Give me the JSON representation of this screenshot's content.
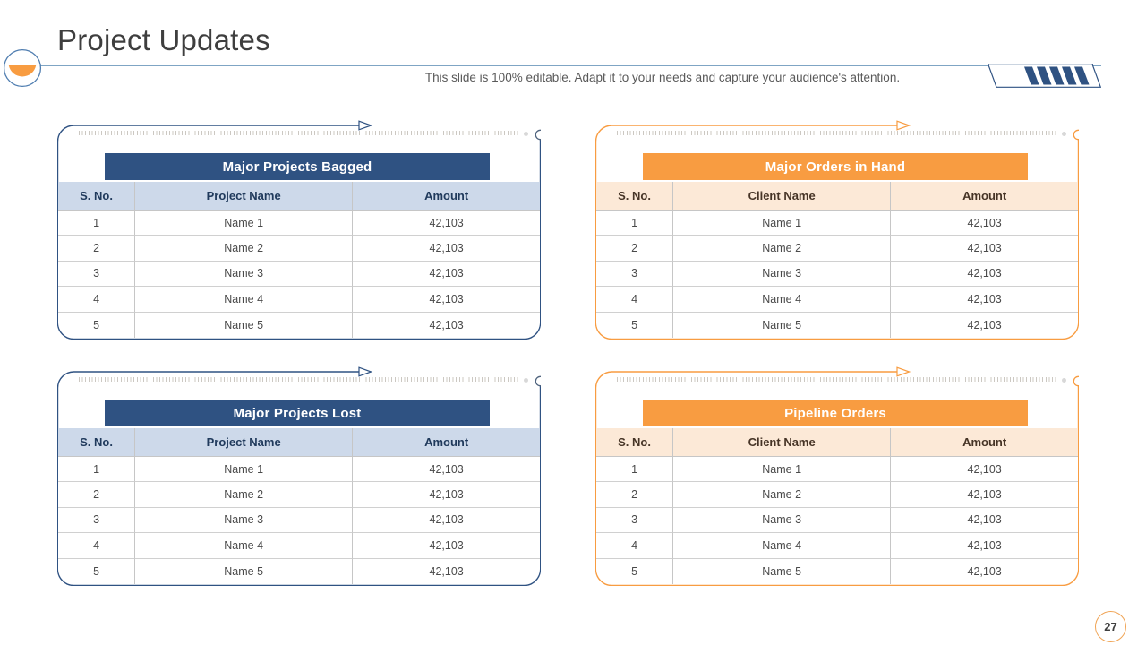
{
  "slide": {
    "title": "Project Updates",
    "subtitle": "This slide is 100% editable. Adapt it to your needs and capture your audience's attention.",
    "page_number": "27"
  },
  "colors": {
    "blue": "#2F5282",
    "blue_light": "#CDD9EA",
    "orange": "#F89C41",
    "orange_light": "#FCE9D7",
    "title_text": "#3E3E3E",
    "subtitle_text": "#595959",
    "cell_text": "#4A4A4A"
  },
  "icons": {
    "logo": "half-filled-circle-icon",
    "hatch": "striped-parallelogram-icon",
    "arrow": "right-arrow-icon",
    "node": "circle-node-icon"
  },
  "tables": [
    {
      "title": "Major Projects Bagged",
      "theme": "blue",
      "columns": [
        "S. No.",
        "Project Name",
        "Amount"
      ],
      "rows": [
        [
          "1",
          "Name 1",
          "42,103"
        ],
        [
          "2",
          "Name 2",
          "42,103"
        ],
        [
          "3",
          "Name 3",
          "42,103"
        ],
        [
          "4",
          "Name 4",
          "42,103"
        ],
        [
          "5",
          "Name 5",
          "42,103"
        ]
      ]
    },
    {
      "title": "Major Orders in Hand",
      "theme": "orange",
      "columns": [
        "S. No.",
        "Client Name",
        "Amount"
      ],
      "rows": [
        [
          "1",
          "Name 1",
          "42,103"
        ],
        [
          "2",
          "Name 2",
          "42,103"
        ],
        [
          "3",
          "Name 3",
          "42,103"
        ],
        [
          "4",
          "Name 4",
          "42,103"
        ],
        [
          "5",
          "Name 5",
          "42,103"
        ]
      ]
    },
    {
      "title": "Major Projects Lost",
      "theme": "blue",
      "columns": [
        "S. No.",
        "Project Name",
        "Amount"
      ],
      "rows": [
        [
          "1",
          "Name 1",
          "42,103"
        ],
        [
          "2",
          "Name 2",
          "42,103"
        ],
        [
          "3",
          "Name 3",
          "42,103"
        ],
        [
          "4",
          "Name 4",
          "42,103"
        ],
        [
          "5",
          "Name 5",
          "42,103"
        ]
      ]
    },
    {
      "title": "Pipeline Orders",
      "theme": "orange",
      "columns": [
        "S. No.",
        "Client Name",
        "Amount"
      ],
      "rows": [
        [
          "1",
          "Name 1",
          "42,103"
        ],
        [
          "2",
          "Name 2",
          "42,103"
        ],
        [
          "3",
          "Name 3",
          "42,103"
        ],
        [
          "4",
          "Name 4",
          "42,103"
        ],
        [
          "5",
          "Name 5",
          "42,103"
        ]
      ]
    }
  ]
}
